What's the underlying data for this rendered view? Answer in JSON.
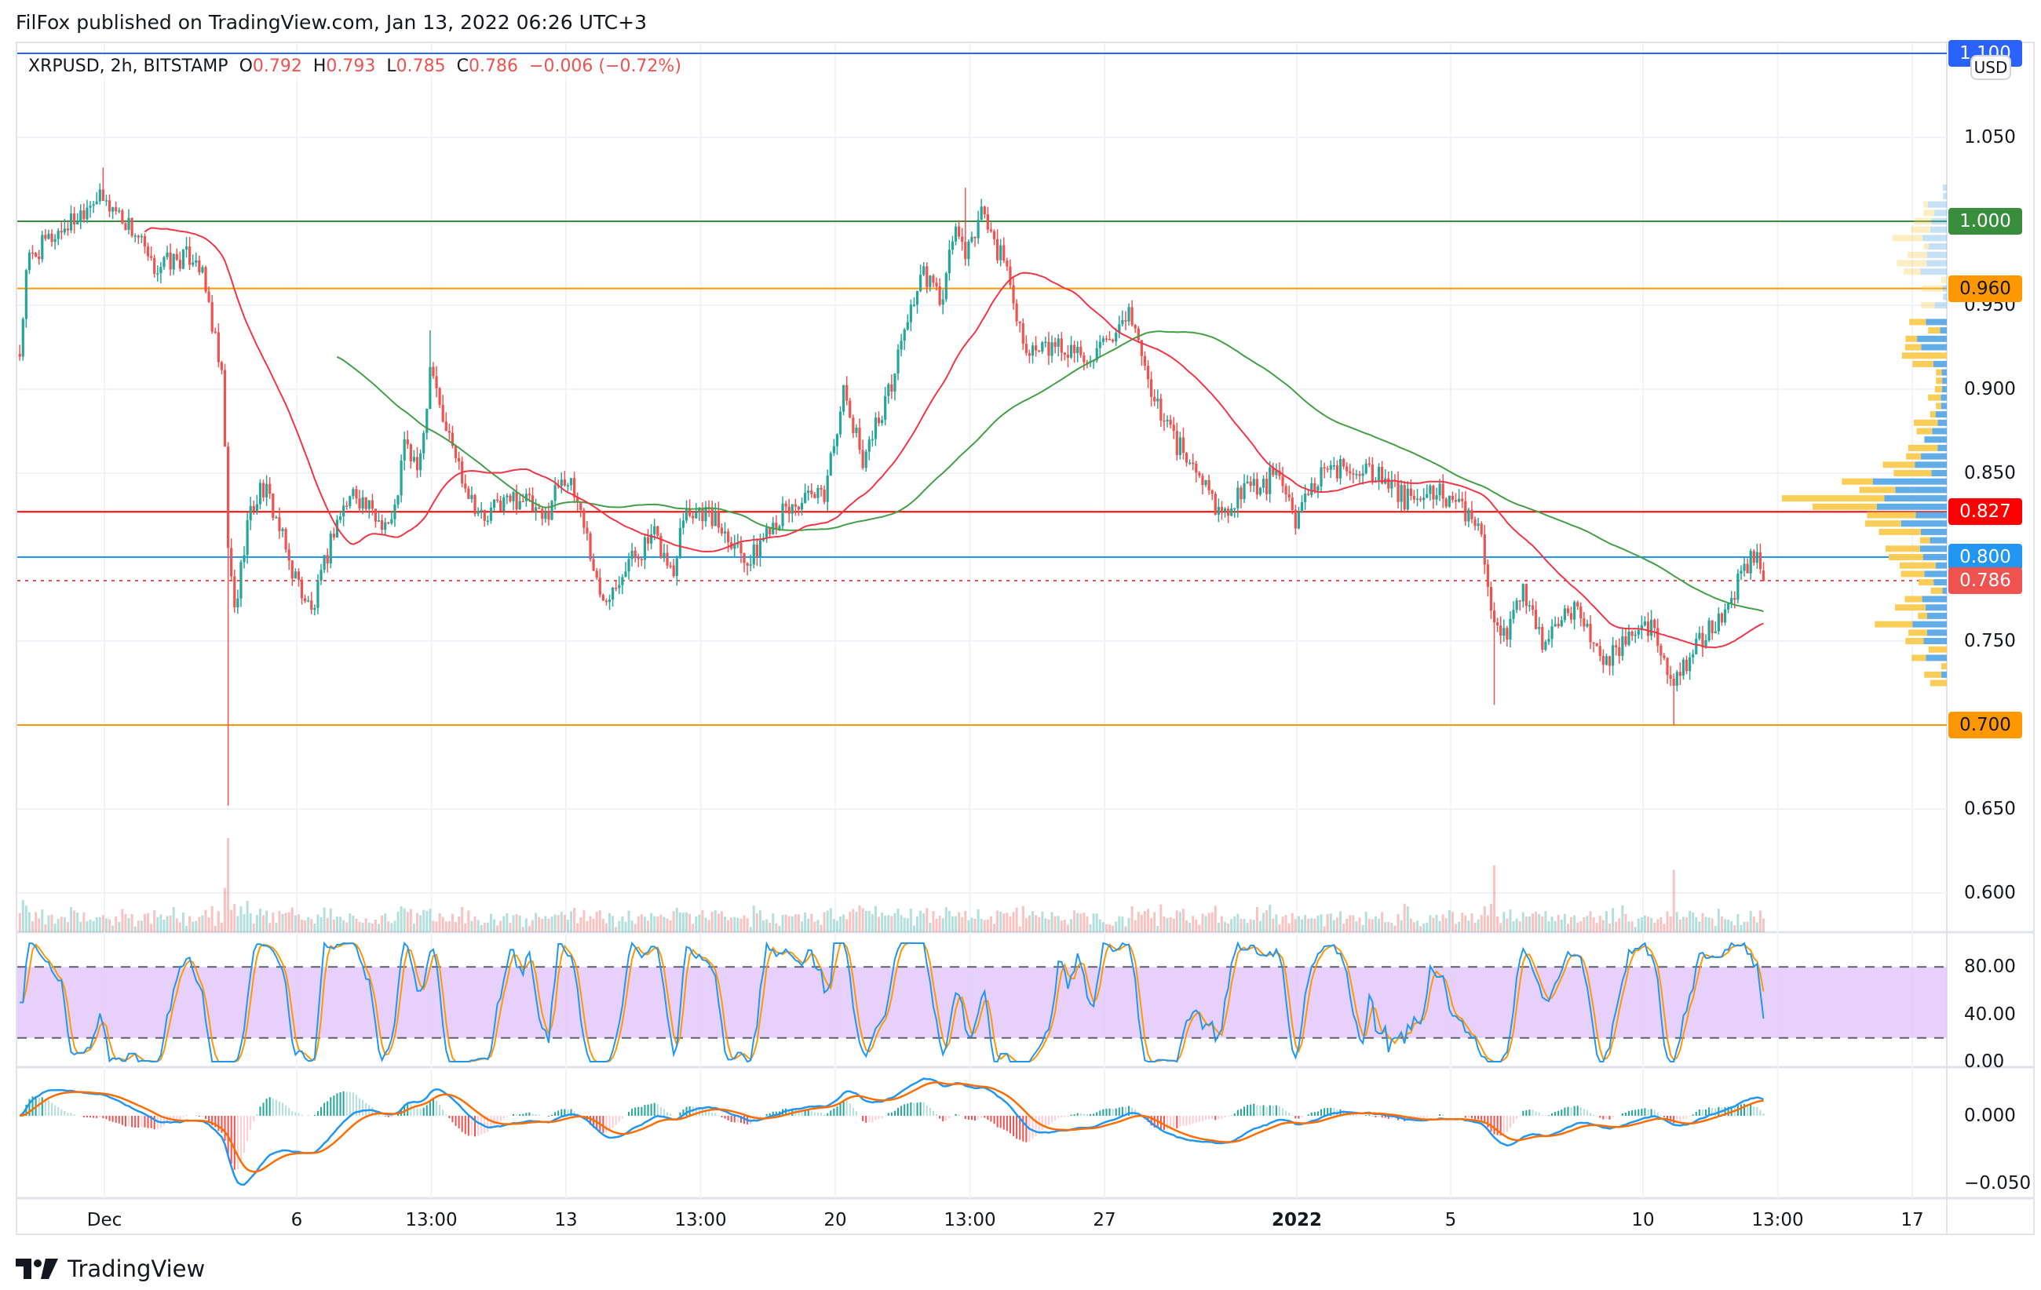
{
  "header": {
    "published": "FilFox published on TradingView.com, Jan 13, 2022 06:26 UTC+3"
  },
  "legend": {
    "symbol": "XRPUSD, 2h, BITSTAMP",
    "o_label": "O",
    "o": "0.792",
    "h_label": "H",
    "h": "0.793",
    "l_label": "L",
    "l": "0.785",
    "c_label": "C",
    "c": "0.786",
    "change": "−0.006 (−0.72%)"
  },
  "currency": "USD",
  "price_axis": [
    "1.050",
    "0.950",
    "0.900",
    "0.850",
    "0.750",
    "0.650",
    "0.600"
  ],
  "price_lines": [
    {
      "label": "1.100",
      "price": 1.1,
      "color": "#2962ff"
    },
    {
      "label": "1.000",
      "price": 1.0,
      "color": "#388e3c"
    },
    {
      "label": "0.960",
      "price": 0.96,
      "color": "#ff9800"
    },
    {
      "label": "0.827",
      "price": 0.827,
      "color": "#ff0000"
    },
    {
      "label": "0.800",
      "price": 0.8,
      "color": "#2196f3"
    },
    {
      "label": "0.786",
      "price": 0.786,
      "color": "#ef5350"
    },
    {
      "label": "0.700",
      "price": 0.7,
      "color": "#ff9800"
    }
  ],
  "stoch_axis": [
    "80.00",
    "40.00",
    "0.00"
  ],
  "macd_axis": [
    "0.000",
    "−0.050"
  ],
  "time_axis": [
    {
      "label": "Dec",
      "t": 0
    },
    {
      "label": "6",
      "t": 5
    },
    {
      "label": "13:00",
      "t": 8.5
    },
    {
      "label": "13",
      "t": 12
    },
    {
      "label": "13:00",
      "t": 15.5
    },
    {
      "label": "20",
      "t": 19
    },
    {
      "label": "13:00",
      "t": 22.5
    },
    {
      "label": "27",
      "t": 26
    },
    {
      "label": "2022",
      "t": 31
    },
    {
      "label": "5",
      "t": 35
    },
    {
      "label": "10",
      "t": 40
    },
    {
      "label": "13:00",
      "t": 43.5
    },
    {
      "label": "17",
      "t": 47
    }
  ],
  "footer": {
    "brand": "TradingView"
  },
  "colors": {
    "up": "#26a69a",
    "down": "#ef5350",
    "ma_slow": "#f23645",
    "ma_fast": "#43a047",
    "stoch_k": "#2196f3",
    "stoch_d": "#ff9800",
    "stoch_band": "#e1c6fb",
    "macd": "#2196f3",
    "signal": "#ff6d00",
    "vp_up": "#5aa9e6",
    "vp_down": "#f9ca4f"
  },
  "chart_data": {
    "type": "candlestick",
    "title": "XRPUSD, 2h, BITSTAMP",
    "x_unit": "days since Dec 1 2021",
    "ylim": [
      0.575,
      1.1
    ],
    "close_waypoints": [
      [
        -2.2,
        0.921
      ],
      [
        -2.0,
        0.976
      ],
      [
        -1.4,
        0.99
      ],
      [
        -0.7,
        1.003
      ],
      [
        -0.3,
        1.015
      ],
      [
        0.3,
        1.007
      ],
      [
        0.9,
        0.99
      ],
      [
        1.2,
        0.972
      ],
      [
        1.7,
        0.976
      ],
      [
        2.4,
        0.98
      ],
      [
        2.7,
        0.952
      ],
      [
        3.1,
        0.898
      ],
      [
        3.2,
        0.805
      ],
      [
        3.4,
        0.766
      ],
      [
        3.7,
        0.82
      ],
      [
        4.1,
        0.843
      ],
      [
        4.4,
        0.828
      ],
      [
        4.8,
        0.797
      ],
      [
        5.4,
        0.766
      ],
      [
        6.0,
        0.82
      ],
      [
        6.5,
        0.84
      ],
      [
        7.0,
        0.824
      ],
      [
        7.5,
        0.82
      ],
      [
        7.8,
        0.867
      ],
      [
        8.2,
        0.851
      ],
      [
        8.5,
        0.921
      ],
      [
        8.8,
        0.882
      ],
      [
        9.4,
        0.843
      ],
      [
        9.9,
        0.82
      ],
      [
        10.2,
        0.832
      ],
      [
        10.9,
        0.836
      ],
      [
        11.4,
        0.82
      ],
      [
        11.9,
        0.851
      ],
      [
        12.4,
        0.828
      ],
      [
        12.9,
        0.774
      ],
      [
        13.6,
        0.797
      ],
      [
        14.3,
        0.812
      ],
      [
        14.8,
        0.789
      ],
      [
        15.0,
        0.828
      ],
      [
        15.6,
        0.828
      ],
      [
        16.3,
        0.812
      ],
      [
        16.8,
        0.797
      ],
      [
        17.3,
        0.82
      ],
      [
        18.0,
        0.832
      ],
      [
        18.7,
        0.836
      ],
      [
        19.2,
        0.898
      ],
      [
        19.7,
        0.859
      ],
      [
        20.4,
        0.898
      ],
      [
        20.9,
        0.945
      ],
      [
        21.3,
        0.968
      ],
      [
        21.8,
        0.952
      ],
      [
        22.1,
        0.999
      ],
      [
        22.4,
        0.976
      ],
      [
        22.8,
        1.007
      ],
      [
        23.1,
        0.99
      ],
      [
        23.5,
        0.968
      ],
      [
        23.8,
        0.937
      ],
      [
        24.1,
        0.921
      ],
      [
        24.8,
        0.925
      ],
      [
        25.5,
        0.921
      ],
      [
        26.2,
        0.925
      ],
      [
        26.7,
        0.945
      ],
      [
        27.2,
        0.898
      ],
      [
        27.9,
        0.867
      ],
      [
        28.6,
        0.843
      ],
      [
        29.1,
        0.824
      ],
      [
        29.6,
        0.843
      ],
      [
        30.1,
        0.84
      ],
      [
        30.4,
        0.851
      ],
      [
        31.0,
        0.82
      ],
      [
        31.3,
        0.843
      ],
      [
        32.0,
        0.851
      ],
      [
        32.8,
        0.855
      ],
      [
        33.3,
        0.843
      ],
      [
        34.0,
        0.832
      ],
      [
        34.7,
        0.84
      ],
      [
        35.2,
        0.828
      ],
      [
        35.7,
        0.824
      ],
      [
        36.1,
        0.766
      ],
      [
        36.4,
        0.75
      ],
      [
        36.9,
        0.781
      ],
      [
        37.4,
        0.75
      ],
      [
        38.1,
        0.77
      ],
      [
        38.6,
        0.758
      ],
      [
        38.9,
        0.735
      ],
      [
        39.5,
        0.75
      ],
      [
        40.0,
        0.766
      ],
      [
        40.5,
        0.743
      ],
      [
        40.8,
        0.727
      ],
      [
        41.3,
        0.743
      ],
      [
        41.8,
        0.758
      ],
      [
        42.3,
        0.774
      ],
      [
        42.7,
        0.797
      ],
      [
        43.0,
        0.801
      ],
      [
        43.2,
        0.786
      ]
    ],
    "spike_lows": [
      [
        3.2,
        0.652
      ],
      [
        36.1,
        0.712
      ],
      [
        40.8,
        0.7
      ]
    ],
    "spike_highs": [
      [
        0.0,
        1.032
      ],
      [
        22.4,
        1.02
      ],
      [
        8.5,
        0.935
      ]
    ],
    "indicators": [
      "Moving averages",
      "Volume",
      "Stoch RSI (80/20 bands)",
      "MACD"
    ]
  }
}
